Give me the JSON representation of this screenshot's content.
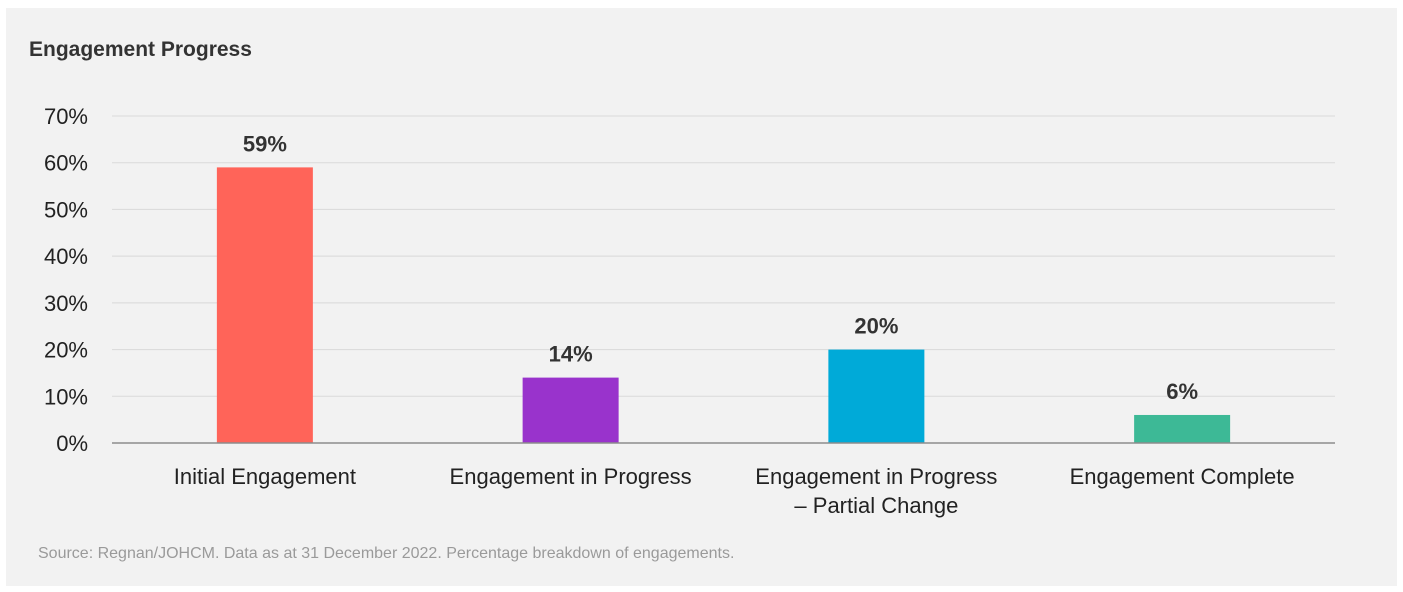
{
  "chart_data": {
    "type": "bar",
    "title": "Engagement Progress",
    "categories": [
      "Initial Engagement",
      "Engagement in Progress",
      "Engagement in Progress – Partial Change",
      "Engagement Complete"
    ],
    "category_lines": [
      [
        "Initial Engagement"
      ],
      [
        "Engagement in Progress"
      ],
      [
        "Engagement in Progress",
        "– Partial Change"
      ],
      [
        "Engagement Complete"
      ]
    ],
    "values": [
      59,
      14,
      20,
      6
    ],
    "data_labels": [
      "59%",
      "14%",
      "20%",
      "6%"
    ],
    "colors": [
      "#ff6459",
      "#9933cc",
      "#00aad8",
      "#3db996"
    ],
    "ylim": [
      0,
      70
    ],
    "yticks": [
      0,
      10,
      20,
      30,
      40,
      50,
      60,
      70
    ],
    "ytick_labels": [
      "0%",
      "10%",
      "20%",
      "30%",
      "40%",
      "50%",
      "60%",
      "70%"
    ],
    "xlabel": "",
    "ylabel": "",
    "grid": true,
    "legend": "none"
  },
  "source_note": "Source: Regnan/JOHCM. Data as at 31 December 2022. Percentage breakdown of engagements."
}
